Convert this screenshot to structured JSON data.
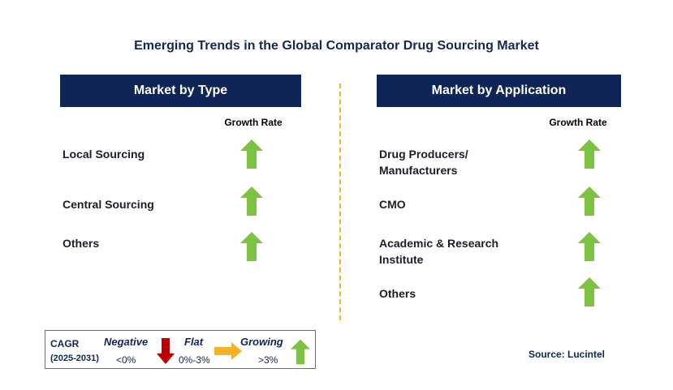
{
  "title": "Emerging Trends in the Global Comparator Drug Sourcing Market",
  "left_panel": {
    "header": "Market by Type",
    "growth_label": "Growth Rate",
    "items": [
      {
        "label": "Local Sourcing",
        "trend": "growing"
      },
      {
        "label": "Central Sourcing",
        "trend": "growing"
      },
      {
        "label": "Others",
        "trend": "growing"
      }
    ]
  },
  "right_panel": {
    "header": "Market by Application",
    "growth_label": "Growth Rate",
    "items": [
      {
        "label_line1": "Drug Producers/",
        "label_line2": "Manufacturers",
        "trend": "growing"
      },
      {
        "label_line1": "CMO",
        "label_line2": "",
        "trend": "growing"
      },
      {
        "label_line1": "Academic & Research",
        "label_line2": "Institute",
        "trend": "growing"
      },
      {
        "label_line1": "Others",
        "label_line2": "",
        "trend": "growing"
      }
    ]
  },
  "legend": {
    "cagr": "CAGR",
    "period": "(2025-2031)",
    "negative_label": "Negative",
    "negative_range": "<0%",
    "flat_label": "Flat",
    "flat_range": "0%-3%",
    "growing_label": "Growing",
    "growing_range": ">3%"
  },
  "source": "Source: Lucintel",
  "colors": {
    "header_bg": "#0f2557",
    "growing_arrow": "#7dc242",
    "negative_arrow": "#c00000",
    "flat_arrow": "#f5b323",
    "divider": "#f5b323"
  }
}
